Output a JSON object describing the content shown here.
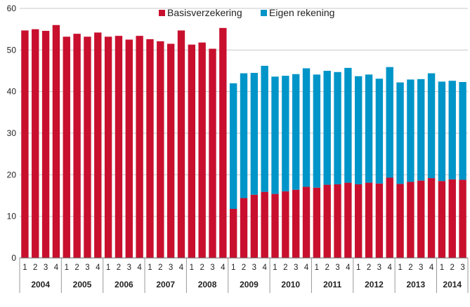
{
  "chart_data": {
    "type": "bar",
    "stacked": true,
    "ylim": [
      0,
      60
    ],
    "yticks": [
      0,
      10,
      20,
      30,
      40,
      50,
      60
    ],
    "grid": true,
    "legend_position": "top-center",
    "quarters": [
      "1",
      "2",
      "3",
      "4",
      "1",
      "2",
      "3",
      "4",
      "1",
      "2",
      "3",
      "4",
      "1",
      "2",
      "3",
      "4",
      "1",
      "2",
      "3",
      "4",
      "1",
      "2",
      "3",
      "4",
      "1",
      "2",
      "3",
      "4",
      "1",
      "2",
      "3",
      "4",
      "1",
      "2",
      "3",
      "4",
      "1",
      "2",
      "3",
      "4",
      "1",
      "2",
      "3"
    ],
    "years": [
      {
        "label": "2004",
        "count": 4
      },
      {
        "label": "2005",
        "count": 4
      },
      {
        "label": "2006",
        "count": 4
      },
      {
        "label": "2007",
        "count": 4
      },
      {
        "label": "2008",
        "count": 4
      },
      {
        "label": "2009",
        "count": 4
      },
      {
        "label": "2010",
        "count": 4
      },
      {
        "label": "2011",
        "count": 4
      },
      {
        "label": "2012",
        "count": 4
      },
      {
        "label": "2013",
        "count": 4
      },
      {
        "label": "2014",
        "count": 3
      }
    ],
    "series": [
      {
        "name": "Basisverzekering",
        "color": "#c8102e",
        "values": [
          54.7,
          55.0,
          54.6,
          56.0,
          53.2,
          53.9,
          53.2,
          54.2,
          53.2,
          53.4,
          52.5,
          53.4,
          52.6,
          52.1,
          51.5,
          54.7,
          51.3,
          51.8,
          50.3,
          55.3,
          11.8,
          14.4,
          15.2,
          15.9,
          15.4,
          16.0,
          16.4,
          17.1,
          16.9,
          17.6,
          17.7,
          18.1,
          17.7,
          18.1,
          17.9,
          19.3,
          17.8,
          18.3,
          18.6,
          19.2,
          18.5,
          18.9,
          18.8
        ]
      },
      {
        "name": "Eigen rekening",
        "color": "#0095c8",
        "values": [
          0,
          0,
          0,
          0,
          0,
          0,
          0,
          0,
          0,
          0,
          0,
          0,
          0,
          0,
          0,
          0,
          0,
          0,
          0,
          0,
          30.2,
          30.0,
          29.3,
          30.3,
          28.2,
          27.8,
          27.8,
          28.5,
          27.2,
          27.4,
          27.0,
          27.6,
          26.0,
          26.0,
          25.2,
          26.6,
          24.4,
          24.6,
          24.4,
          25.2,
          23.9,
          23.7,
          23.5
        ]
      }
    ]
  }
}
